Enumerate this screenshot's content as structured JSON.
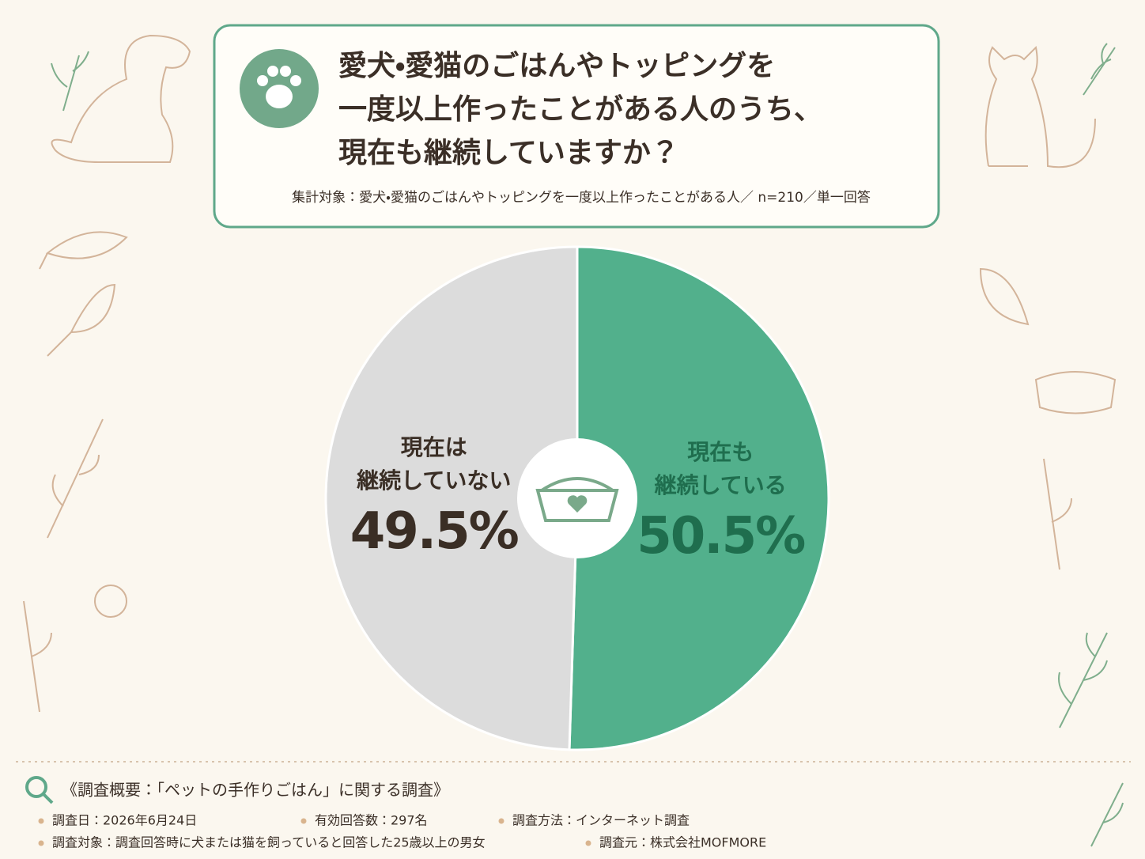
{
  "chart_data": {
    "type": "pie",
    "title": [
      "愛犬・愛猫のごはんやトッピングを",
      "一度以上作ったことがある人のうち、",
      "現在も継続していますか？"
    ],
    "subtitle": "集計対象：愛犬・愛猫のごはんやトッピングを一度以上作ったことがある人／ n=210／単一回答",
    "categories": [
      "現在も\n継続している",
      "現在は\n継続していない"
    ],
    "values": [
      50.5,
      49.5
    ],
    "value_labels": [
      "50.5%",
      "49.5%"
    ],
    "colors": [
      "#52b08c",
      "#dcdcdc"
    ],
    "label_colors": [
      "#1f6e4e",
      "#3a2e25"
    ]
  },
  "survey": {
    "heading": "《調査概要：「ペットの手作りごはん」に関する調査》",
    "items": [
      "調査日：2026年6月24日",
      "有効回答数：297名",
      "調査方法：インターネット調査",
      "調査対象：調査回答時に犬または猫を飼っていると回答した25歳以上の男女",
      "調査元：株式会社MOFMORE"
    ]
  }
}
